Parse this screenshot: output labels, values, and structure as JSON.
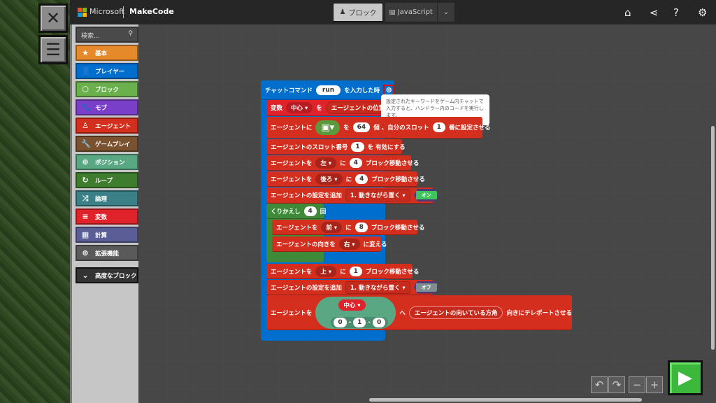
{
  "header": {
    "brand": "Microsoft",
    "product": "MakeCode",
    "tabs": [
      {
        "label": "ブロック",
        "active": true
      },
      {
        "label": "JavaScript",
        "active": false
      }
    ],
    "icons": [
      "home-icon",
      "share-icon",
      "help-icon",
      "settings-icon"
    ]
  },
  "toolbox": {
    "search_placeholder": "検索...",
    "categories": [
      {
        "label": "基本",
        "color": "#e6892b",
        "icon": "★"
      },
      {
        "label": "プレイヤー",
        "color": "#006ecc",
        "icon": "👤"
      },
      {
        "label": "ブロック",
        "color": "#6ab04c",
        "icon": "⬡"
      },
      {
        "label": "モブ",
        "color": "#7a3fc8",
        "icon": "🐾"
      },
      {
        "label": "エージェント",
        "color": "#d42f1e",
        "icon": "♙"
      },
      {
        "label": "ゲームプレイ",
        "color": "#7a5230",
        "icon": "🔧"
      },
      {
        "label": "ポジション",
        "color": "#5aa784",
        "icon": "⊕"
      },
      {
        "label": "ループ",
        "color": "#3f7d2e",
        "icon": "↻"
      },
      {
        "label": "論理",
        "color": "#3a8086",
        "icon": "⤨"
      },
      {
        "label": "変数",
        "color": "#e0232b",
        "icon": "≡"
      },
      {
        "label": "計算",
        "color": "#5b5e96",
        "icon": "▦"
      },
      {
        "label": "拡張機能",
        "color": "#5a5a5a",
        "icon": "⊕"
      }
    ],
    "advanced": "高度なブロック"
  },
  "blocks": {
    "hat": {
      "pre": "チャットコマンド",
      "command": "run",
      "post": "を入力した時"
    },
    "tooltip": "設定されたキーワードをゲーム内チャットで入力すると、ハンドラー内のコードを実行します。",
    "r1": {
      "a": "変数",
      "var": "中心",
      "b": "を",
      "c": "エージェントの位置"
    },
    "r2": {
      "a": "エージェントに",
      "b": "を",
      "n": "64",
      "c": "個 、自分のスロット",
      "slot": "1",
      "d": "番に設定させる"
    },
    "r3": {
      "a": "エージェントのスロット番号",
      "n": "1",
      "b": "を 有効にする"
    },
    "r4": {
      "a": "エージェントを",
      "dir": "左",
      "b": "に",
      "n": "4",
      "c": "ブロック移動させる"
    },
    "r5": {
      "a": "エージェントを",
      "dir": "後ろ",
      "b": "に",
      "n": "4",
      "c": "ブロック移動させる"
    },
    "r6": {
      "a": "エージェントの設定を追加",
      "opt": "1. 動きながら置く",
      "toggle": "オン"
    },
    "loop": {
      "a": "くりかえし",
      "n": "4",
      "b": "回"
    },
    "l1": {
      "a": "エージェントを",
      "dir": "前",
      "b": "に",
      "n": "8",
      "c": "ブロック移動させる"
    },
    "l2": {
      "a": "エージェントの向きを",
      "dir": "右",
      "b": "に変える"
    },
    "r7": {
      "a": "エージェントを",
      "dir": "上",
      "b": "に",
      "n": "1",
      "c": "ブロック移動させる"
    },
    "r8": {
      "a": "エージェントの設定を追加",
      "opt": "1. 動きながら置く",
      "toggle": "オフ"
    },
    "r9": {
      "a": "エージェントを",
      "var": "中心",
      "x": "0",
      "y": "1",
      "z": "0",
      "b": "へ",
      "c": "エージェントの向いている方角",
      "d": "向きにテレポートさせる"
    }
  }
}
